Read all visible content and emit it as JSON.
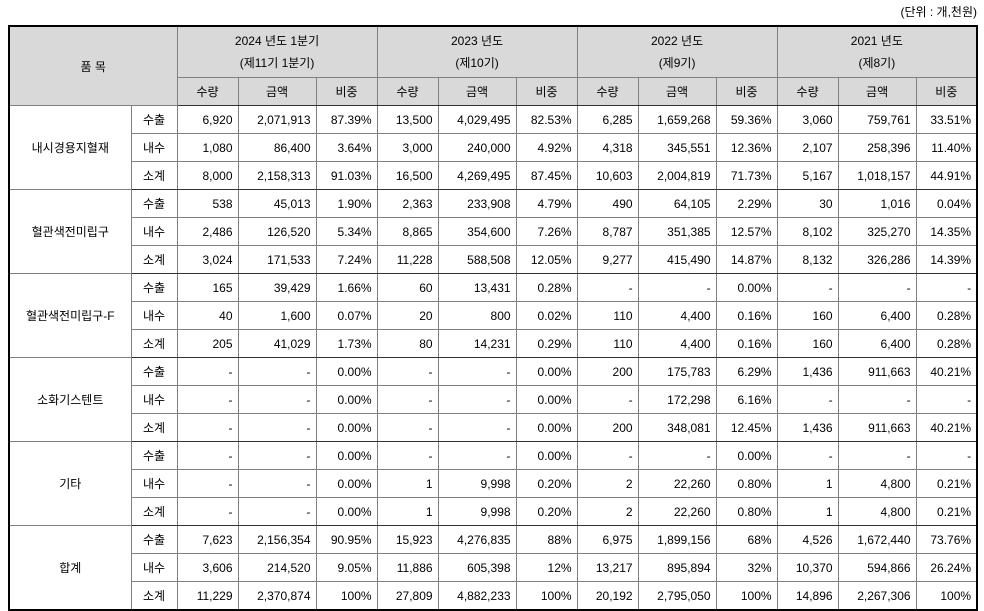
{
  "unit_label": "(단위 : 개,천원)",
  "table": {
    "item_header": "품 목",
    "col_headers": [
      "수량",
      "금액",
      "비중"
    ],
    "year_groups": [
      {
        "line1": "2024 년도 1분기",
        "line2": "(제11기 1분기)"
      },
      {
        "line1": "2023 년도",
        "line2": "(제10기)"
      },
      {
        "line1": "2022 년도",
        "line2": "(제9기)"
      },
      {
        "line1": "2021 년도",
        "line2": "(제8기)"
      }
    ],
    "row_types": [
      "수출",
      "내수",
      "소계"
    ],
    "groups": [
      {
        "name": "내시경용지혈재",
        "rows": [
          [
            "6,920",
            "2,071,913",
            "87.39%",
            "13,500",
            "4,029,495",
            "82.53%",
            "6,285",
            "1,659,268",
            "59.36%",
            "3,060",
            "759,761",
            "33.51%"
          ],
          [
            "1,080",
            "86,400",
            "3.64%",
            "3,000",
            "240,000",
            "4.92%",
            "4,318",
            "345,551",
            "12.36%",
            "2,107",
            "258,396",
            "11.40%"
          ],
          [
            "8,000",
            "2,158,313",
            "91.03%",
            "16,500",
            "4,269,495",
            "87.45%",
            "10,603",
            "2,004,819",
            "71.73%",
            "5,167",
            "1,018,157",
            "44.91%"
          ]
        ]
      },
      {
        "name": "혈관색전미립구",
        "rows": [
          [
            "538",
            "45,013",
            "1.90%",
            "2,363",
            "233,908",
            "4.79%",
            "490",
            "64,105",
            "2.29%",
            "30",
            "1,016",
            "0.04%"
          ],
          [
            "2,486",
            "126,520",
            "5.34%",
            "8,865",
            "354,600",
            "7.26%",
            "8,787",
            "351,385",
            "12.57%",
            "8,102",
            "325,270",
            "14.35%"
          ],
          [
            "3,024",
            "171,533",
            "7.24%",
            "11,228",
            "588,508",
            "12.05%",
            "9,277",
            "415,490",
            "14.87%",
            "8,132",
            "326,286",
            "14.39%"
          ]
        ]
      },
      {
        "name": "혈관색전미립구-F",
        "rows": [
          [
            "165",
            "39,429",
            "1.66%",
            "60",
            "13,431",
            "0.28%",
            "-",
            "-",
            "0.00%",
            "-",
            "-",
            "-"
          ],
          [
            "40",
            "1,600",
            "0.07%",
            "20",
            "800",
            "0.02%",
            "110",
            "4,400",
            "0.16%",
            "160",
            "6,400",
            "0.28%"
          ],
          [
            "205",
            "41,029",
            "1.73%",
            "80",
            "14,231",
            "0.29%",
            "110",
            "4,400",
            "0.16%",
            "160",
            "6,400",
            "0.28%"
          ]
        ]
      },
      {
        "name": "소화기스텐트",
        "rows": [
          [
            "-",
            "-",
            "0.00%",
            "-",
            "-",
            "0.00%",
            "200",
            "175,783",
            "6.29%",
            "1,436",
            "911,663",
            "40.21%"
          ],
          [
            "-",
            "-",
            "0.00%",
            "-",
            "-",
            "0.00%",
            "-",
            "172,298",
            "6.16%",
            "-",
            "-",
            "-"
          ],
          [
            "-",
            "-",
            "0.00%",
            "-",
            "-",
            "0.00%",
            "200",
            "348,081",
            "12.45%",
            "1,436",
            "911,663",
            "40.21%"
          ]
        ]
      },
      {
        "name": "기타",
        "rows": [
          [
            "-",
            "-",
            "0.00%",
            "-",
            "-",
            "0.00%",
            "-",
            "-",
            "0.00%",
            "-",
            "-",
            "-"
          ],
          [
            "-",
            "-",
            "0.00%",
            "1",
            "9,998",
            "0.20%",
            "2",
            "22,260",
            "0.80%",
            "1",
            "4,800",
            "0.21%"
          ],
          [
            "-",
            "-",
            "0.00%",
            "1",
            "9,998",
            "0.20%",
            "2",
            "22,260",
            "0.80%",
            "1",
            "4,800",
            "0.21%"
          ]
        ]
      },
      {
        "name": "합계",
        "rows": [
          [
            "7,623",
            "2,156,354",
            "90.95%",
            "15,923",
            "4,276,835",
            "88%",
            "6,975",
            "1,899,156",
            "68%",
            "4,526",
            "1,672,440",
            "73.76%"
          ],
          [
            "3,606",
            "214,520",
            "9.05%",
            "11,886",
            "605,398",
            "12%",
            "13,217",
            "895,894",
            "32%",
            "10,370",
            "594,866",
            "26.24%"
          ],
          [
            "11,229",
            "2,370,874",
            "100%",
            "27,809",
            "4,882,233",
            "100%",
            "20,192",
            "2,795,050",
            "100%",
            "14,896",
            "2,267,306",
            "100%"
          ]
        ]
      }
    ],
    "colors": {
      "header_bg": "#d9d9d9",
      "grid_line": "#808080",
      "group_separator": "#333333",
      "outer_border": "#000000",
      "text": "#000000"
    }
  }
}
